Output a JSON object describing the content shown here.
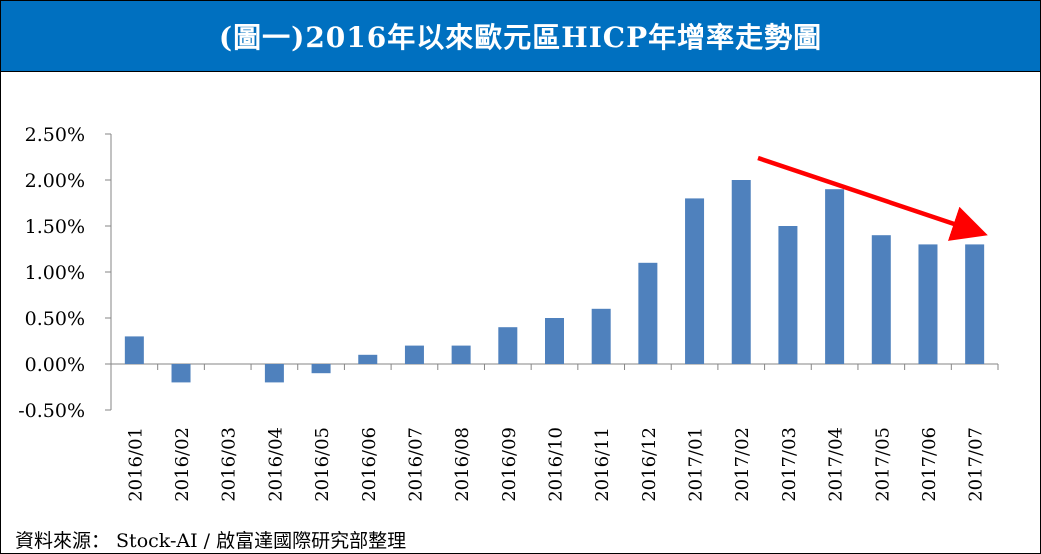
{
  "title": "(圖一)2016年以來歐元區HICP年增率走勢圖",
  "source": "資料來源： Stock-AI / 啟富達國際研究部整理",
  "colors": {
    "title_bg": "#0070c0",
    "bar": "#4f81bd",
    "trend_arrow": "#ff0000"
  },
  "chart_data": {
    "type": "bar",
    "title": "(圖一)2016年以來歐元區HICP年增率走勢圖",
    "xlabel": "",
    "ylabel": "",
    "categories": [
      "2016/01",
      "2016/02",
      "2016/03",
      "2016/04",
      "2016/05",
      "2016/06",
      "2016/07",
      "2016/08",
      "2016/09",
      "2016/10",
      "2016/11",
      "2016/12",
      "2017/01",
      "2017/02",
      "2017/03",
      "2017/04",
      "2017/05",
      "2017/06",
      "2017/07"
    ],
    "values": [
      0.3,
      -0.2,
      0.0,
      -0.2,
      -0.1,
      0.1,
      0.2,
      0.2,
      0.4,
      0.5,
      0.6,
      1.1,
      1.8,
      2.0,
      1.5,
      1.9,
      1.4,
      1.3,
      1.3
    ],
    "ylim": [
      -0.5,
      2.5
    ],
    "yticks": [
      "2.50%",
      "2.00%",
      "1.50%",
      "1.00%",
      "0.50%",
      "0.00%",
      "-0.50%"
    ],
    "ytick_values": [
      2.5,
      2.0,
      1.5,
      1.0,
      0.5,
      0.0,
      -0.5
    ],
    "grid": false,
    "legend": "none",
    "annotations": [
      {
        "type": "arrow",
        "description": "downward trend arrow",
        "from_category": "2017/02",
        "to_category": "2017/07"
      }
    ]
  }
}
